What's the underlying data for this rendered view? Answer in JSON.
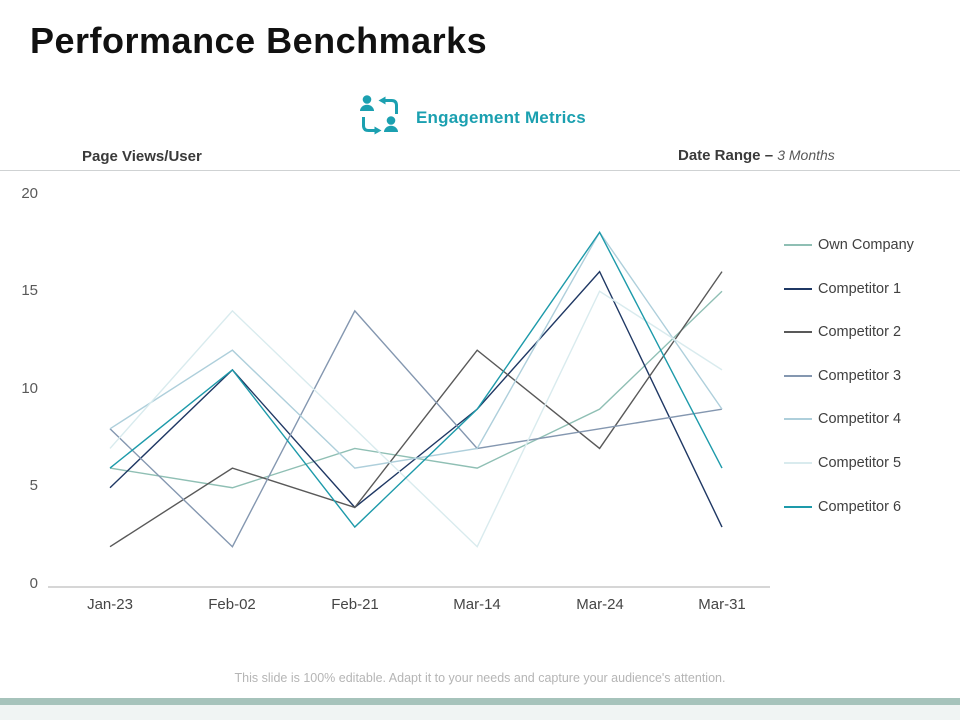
{
  "slide": {
    "title": "Performance Benchmarks",
    "engagement_label": "Engagement Metrics",
    "y_axis_title": "Page Views/User",
    "date_range_label": "Date Range –",
    "date_range_value": "3 Months",
    "footer": "This slide is 100% editable. Adapt it to your needs and capture your audience's attention.",
    "accent_teal": "#1ba0b0",
    "bottom_bar_color": "#a6c3bb"
  },
  "chart_data": {
    "type": "line",
    "title": "Performance Benchmarks",
    "xlabel": "",
    "ylabel": "Page Views/User",
    "ylim": [
      0,
      20
    ],
    "grid": false,
    "legend_position": "right",
    "yticks": [
      "20",
      "15",
      "10",
      "5",
      "0"
    ],
    "categories": [
      "Jan-23",
      "Feb-02",
      "Feb-21",
      "Mar-14",
      "Mar-24",
      "Mar-31"
    ],
    "series": [
      {
        "name": "Own Company",
        "color": "#8fbfb4",
        "values": [
          6,
          5,
          7,
          6,
          9,
          15
        ]
      },
      {
        "name": "Competitor 1",
        "color": "#1f3864",
        "values": [
          5,
          11,
          4,
          9,
          16,
          3
        ]
      },
      {
        "name": "Competitor 2",
        "color": "#595959",
        "values": [
          2,
          6,
          4,
          12,
          7,
          16
        ]
      },
      {
        "name": "Competitor 3",
        "color": "#8497b0",
        "values": [
          8,
          2,
          14,
          7,
          8,
          9
        ]
      },
      {
        "name": "Competitor 4",
        "color": "#aecfdb",
        "values": [
          8,
          12,
          6,
          7,
          18,
          9
        ]
      },
      {
        "name": "Competitor 5",
        "color": "#d9ebee",
        "values": [
          7,
          14,
          8,
          2,
          15,
          11
        ]
      },
      {
        "name": "Competitor 6",
        "color": "#1d9aaa",
        "values": [
          6,
          11,
          3,
          9,
          18,
          6
        ]
      }
    ]
  }
}
